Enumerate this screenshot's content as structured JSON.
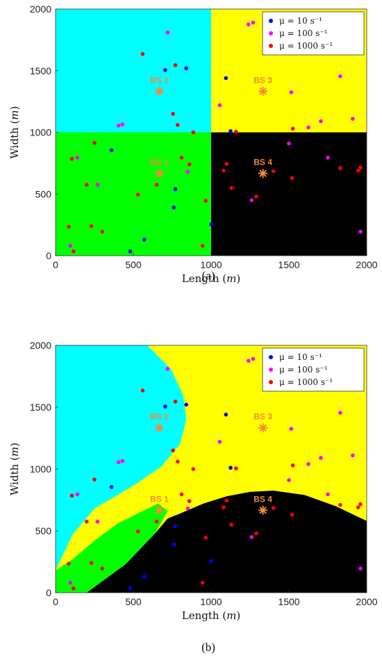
{
  "chart_data": [
    {
      "type": "scatter",
      "panel": "a",
      "caption": "(a)",
      "xlabel": "Length (m)",
      "ylabel": "Width (m)",
      "xlim": [
        0,
        2000
      ],
      "ylim": [
        0,
        2000
      ],
      "xticks": [
        "0",
        "500",
        "1000",
        "1500",
        "2000"
      ],
      "yticks": [
        "0",
        "500",
        "1000",
        "1500",
        "2000"
      ],
      "grid": false,
      "legend_position": "top-right",
      "regions": [
        {
          "color": "#00ffff",
          "shape": "rect",
          "x": [
            0,
            1000
          ],
          "y": [
            1000,
            2000
          ]
        },
        {
          "color": "#ffff00",
          "shape": "rect",
          "x": [
            1000,
            2000
          ],
          "y": [
            1000,
            2000
          ]
        },
        {
          "color": "#00ff00",
          "shape": "rect",
          "x": [
            0,
            1000
          ],
          "y": [
            0,
            1000
          ]
        },
        {
          "color": "#000000",
          "shape": "rect",
          "x": [
            1000,
            2000
          ],
          "y": [
            0,
            1000
          ]
        }
      ],
      "base_stations": [
        {
          "label": "BS 1",
          "x": 667,
          "y": 667
        },
        {
          "label": "BS 2",
          "x": 667,
          "y": 1333
        },
        {
          "label": "BS 3",
          "x": 1333,
          "y": 1333
        },
        {
          "label": "BS 4",
          "x": 1333,
          "y": 667
        }
      ],
      "series": [
        {
          "name": "μ = 10 s⁻¹",
          "color": "#0000ff",
          "points": [
            [
              360,
              855
            ],
            [
              480,
              35
            ],
            [
              570,
              130
            ],
            [
              705,
              1505
            ],
            [
              760,
              390
            ],
            [
              770,
              540
            ],
            [
              840,
              1520
            ],
            [
              1000,
              255
            ],
            [
              1095,
              1440
            ],
            [
              1125,
              1010
            ]
          ]
        },
        {
          "name": "μ = 100 s⁻¹",
          "color": "#ff00ff",
          "points": [
            [
              95,
              80
            ],
            [
              140,
              795
            ],
            [
              270,
              575
            ],
            [
              405,
              1055
            ],
            [
              430,
              1065
            ],
            [
              720,
              1810
            ],
            [
              850,
              680
            ],
            [
              1055,
              1220
            ],
            [
              1240,
              1875
            ],
            [
              1270,
              1890
            ],
            [
              1260,
              450
            ],
            [
              1515,
              1325
            ],
            [
              1500,
              910
            ],
            [
              1625,
              1040
            ],
            [
              1705,
              1090
            ],
            [
              1750,
              795
            ],
            [
              1830,
              1455
            ],
            [
              1910,
              1110
            ],
            [
              1960,
              195
            ]
          ]
        },
        {
          "name": "μ = 1000 s⁻¹",
          "color": "#ff0000",
          "points": [
            [
              85,
              235
            ],
            [
              105,
              785
            ],
            [
              115,
              35
            ],
            [
              200,
              575
            ],
            [
              230,
              240
            ],
            [
              250,
              915
            ],
            [
              300,
              195
            ],
            [
              530,
              495
            ],
            [
              560,
              1635
            ],
            [
              650,
              575
            ],
            [
              755,
              1150
            ],
            [
              770,
              1545
            ],
            [
              785,
              1060
            ],
            [
              810,
              795
            ],
            [
              860,
              740
            ],
            [
              885,
              1000
            ],
            [
              945,
              80
            ],
            [
              965,
              445
            ],
            [
              1080,
              690
            ],
            [
              1100,
              745
            ],
            [
              1130,
              550
            ],
            [
              1160,
              1005
            ],
            [
              1290,
              480
            ],
            [
              1400,
              685
            ],
            [
              1525,
              1030
            ],
            [
              1520,
              630
            ],
            [
              1830,
              710
            ],
            [
              1945,
              690
            ],
            [
              1960,
              715
            ]
          ]
        }
      ]
    },
    {
      "type": "scatter",
      "panel": "b",
      "caption": "(b)",
      "xlabel": "Length (m)",
      "ylabel": "Width (m)",
      "xlim": [
        0,
        2000
      ],
      "ylim": [
        0,
        2000
      ],
      "xticks": [
        "0",
        "500",
        "1000",
        "1500",
        "2000"
      ],
      "yticks": [
        "0",
        "500",
        "1000",
        "1500",
        "2000"
      ],
      "grid": false,
      "legend_position": "top-right",
      "regions": [
        {
          "color": "#ffff00",
          "shape": "polygon",
          "points": [
            [
              0,
              0
            ],
            [
              2000,
              0
            ],
            [
              2000,
              2000
            ],
            [
              0,
              2000
            ]
          ]
        },
        {
          "color": "#00ffff",
          "shape": "polygon",
          "points": [
            [
              0,
              2000
            ],
            [
              590,
              2000
            ],
            [
              740,
              1810
            ],
            [
              820,
              1600
            ],
            [
              840,
              1400
            ],
            [
              800,
              1200
            ],
            [
              680,
              1020
            ],
            [
              530,
              890
            ],
            [
              400,
              790
            ],
            [
              250,
              680
            ],
            [
              110,
              470
            ],
            [
              0,
              180
            ]
          ]
        },
        {
          "color": "#00ff00",
          "shape": "polygon",
          "points": [
            [
              0,
              0
            ],
            [
              200,
              0
            ],
            [
              450,
              230
            ],
            [
              640,
              480
            ],
            [
              720,
              660
            ],
            [
              660,
              720
            ],
            [
              560,
              660
            ],
            [
              400,
              560
            ],
            [
              250,
              420
            ],
            [
              110,
              270
            ],
            [
              0,
              180
            ]
          ]
        },
        {
          "color": "#000000",
          "shape": "polygon",
          "points": [
            [
              200,
              0
            ],
            [
              2000,
              0
            ],
            [
              2000,
              580
            ],
            [
              1800,
              700
            ],
            [
              1600,
              790
            ],
            [
              1400,
              825
            ],
            [
              1250,
              815
            ],
            [
              1100,
              780
            ],
            [
              950,
              720
            ],
            [
              800,
              640
            ],
            [
              720,
              600
            ],
            [
              640,
              480
            ],
            [
              450,
              230
            ]
          ]
        }
      ],
      "base_stations": [
        {
          "label": "BS 1",
          "x": 667,
          "y": 667
        },
        {
          "label": "BS 2",
          "x": 667,
          "y": 1333
        },
        {
          "label": "BS 3",
          "x": 1333,
          "y": 1333
        },
        {
          "label": "BS 4",
          "x": 1333,
          "y": 667
        }
      ],
      "series": [
        {
          "name": "μ = 10 s⁻¹",
          "color": "#0000ff",
          "points": [
            [
              360,
              855
            ],
            [
              480,
              35
            ],
            [
              570,
              130
            ],
            [
              705,
              1505
            ],
            [
              760,
              390
            ],
            [
              770,
              540
            ],
            [
              840,
              1520
            ],
            [
              1000,
              255
            ],
            [
              1095,
              1440
            ],
            [
              1125,
              1010
            ]
          ]
        },
        {
          "name": "μ = 100 s⁻¹",
          "color": "#ff00ff",
          "points": [
            [
              95,
              80
            ],
            [
              140,
              795
            ],
            [
              270,
              575
            ],
            [
              405,
              1055
            ],
            [
              430,
              1065
            ],
            [
              720,
              1810
            ],
            [
              850,
              680
            ],
            [
              1055,
              1220
            ],
            [
              1240,
              1875
            ],
            [
              1270,
              1890
            ],
            [
              1260,
              450
            ],
            [
              1515,
              1325
            ],
            [
              1500,
              910
            ],
            [
              1625,
              1040
            ],
            [
              1705,
              1090
            ],
            [
              1750,
              795
            ],
            [
              1830,
              1455
            ],
            [
              1910,
              1110
            ],
            [
              1960,
              195
            ]
          ]
        },
        {
          "name": "μ = 1000 s⁻¹",
          "color": "#ff0000",
          "points": [
            [
              85,
              235
            ],
            [
              105,
              785
            ],
            [
              115,
              35
            ],
            [
              200,
              575
            ],
            [
              230,
              240
            ],
            [
              250,
              915
            ],
            [
              300,
              195
            ],
            [
              530,
              495
            ],
            [
              560,
              1635
            ],
            [
              650,
              575
            ],
            [
              755,
              1150
            ],
            [
              770,
              1545
            ],
            [
              785,
              1060
            ],
            [
              810,
              795
            ],
            [
              860,
              740
            ],
            [
              885,
              1000
            ],
            [
              945,
              80
            ],
            [
              965,
              445
            ],
            [
              1080,
              690
            ],
            [
              1100,
              745
            ],
            [
              1130,
              550
            ],
            [
              1160,
              1005
            ],
            [
              1290,
              480
            ],
            [
              1400,
              685
            ],
            [
              1525,
              1030
            ],
            [
              1520,
              630
            ],
            [
              1830,
              710
            ],
            [
              1945,
              690
            ],
            [
              1960,
              715
            ]
          ]
        }
      ]
    }
  ]
}
